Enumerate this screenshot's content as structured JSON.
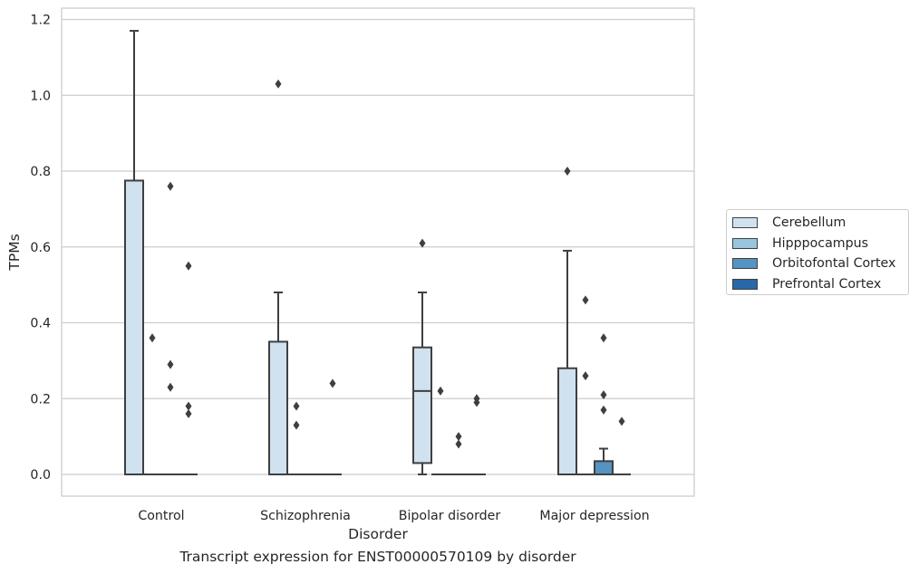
{
  "chart_data": {
    "type": "box",
    "caption": "Transcript expression for ENST00000570109 by disorder",
    "xlabel": "Disorder",
    "ylabel": "TPMs",
    "ylim": [
      -0.057,
      1.23
    ],
    "yticks": [
      0.0,
      0.2,
      0.4,
      0.6,
      0.8,
      1.0,
      1.2
    ],
    "ytick_labels": [
      "0.0",
      "0.2",
      "0.4",
      "0.6",
      "0.8",
      "1.0",
      "1.2"
    ],
    "grid": true,
    "legend_position": "right",
    "categories": [
      "Control",
      "Schizophrenia",
      "Bipolar disorder",
      "Major depression"
    ],
    "series": [
      {
        "name": "Cerebellum",
        "color": "#d0e1f0",
        "boxes": [
          {
            "min": 0,
            "q1": 0,
            "median": 0,
            "q3": 0.775,
            "max": 1.17,
            "outliers": []
          },
          {
            "min": 0,
            "q1": 0,
            "median": 0,
            "q3": 0.35,
            "max": 0.48,
            "outliers": [
              1.03
            ]
          },
          {
            "min": 0,
            "q1": 0.03,
            "median": 0.22,
            "q3": 0.335,
            "max": 0.48,
            "outliers": [
              0.61
            ]
          },
          {
            "min": 0,
            "q1": 0,
            "median": 0,
            "q3": 0.28,
            "max": 0.59,
            "outliers": [
              0.8
            ]
          }
        ]
      },
      {
        "name": "Hipppocampus",
        "color": "#9ac5de",
        "boxes": [
          {
            "min": 0,
            "q1": 0,
            "median": 0,
            "q3": 0,
            "max": 0,
            "outliers": [
              0.36
            ]
          },
          {
            "min": 0,
            "q1": 0,
            "median": 0,
            "q3": 0,
            "max": 0,
            "outliers": [
              0.18,
              0.13
            ]
          },
          {
            "min": 0,
            "q1": 0,
            "median": 0,
            "q3": 0,
            "max": 0,
            "outliers": [
              0.22
            ]
          },
          {
            "min": 0,
            "q1": 0,
            "median": 0,
            "q3": 0,
            "max": 0,
            "outliers": [
              0.46,
              0.26
            ]
          }
        ]
      },
      {
        "name": "Orbitofontal Cortex",
        "color": "#5493c2",
        "boxes": [
          {
            "min": 0,
            "q1": 0,
            "median": 0,
            "q3": 0,
            "max": 0,
            "outliers": [
              0.76,
              0.29,
              0.23
            ]
          },
          {
            "min": 0,
            "q1": 0,
            "median": 0,
            "q3": 0,
            "max": 0,
            "outliers": []
          },
          {
            "min": 0,
            "q1": 0,
            "median": 0,
            "q3": 0,
            "max": 0,
            "outliers": [
              0.1,
              0.08
            ]
          },
          {
            "min": 0,
            "q1": 0,
            "median": 0,
            "q3": 0.035,
            "max": 0.068,
            "outliers": [
              0.36,
              0.21,
              0.17
            ]
          }
        ]
      },
      {
        "name": "Prefrontal Cortex",
        "color": "#2967a8",
        "boxes": [
          {
            "min": 0,
            "q1": 0,
            "median": 0,
            "q3": 0,
            "max": 0,
            "outliers": [
              0.55,
              0.18,
              0.16
            ]
          },
          {
            "min": 0,
            "q1": 0,
            "median": 0,
            "q3": 0,
            "max": 0,
            "outliers": [
              0.24
            ]
          },
          {
            "min": 0,
            "q1": 0,
            "median": 0,
            "q3": 0,
            "max": 0,
            "outliers": [
              0.2,
              0.19
            ]
          },
          {
            "min": 0,
            "q1": 0,
            "median": 0,
            "q3": 0,
            "max": 0,
            "outliers": [
              0.14
            ]
          }
        ]
      }
    ]
  },
  "colors": {
    "grid": "#cccccc",
    "frame": "#cccccc",
    "box_edge": "#3f3f3f"
  }
}
